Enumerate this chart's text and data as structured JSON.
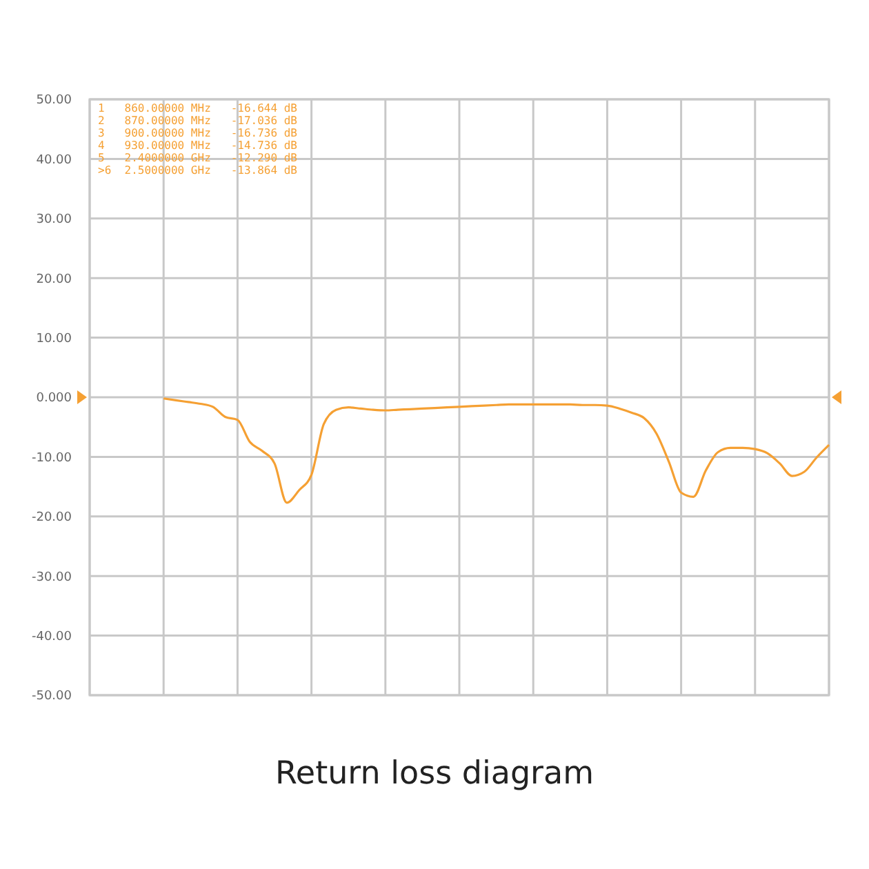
{
  "chart_data": {
    "type": "line",
    "title": "Return loss diagram",
    "categories": [
      null,
      null,
      null,
      null,
      null,
      null,
      null,
      null,
      null,
      null,
      null,
      null,
      null,
      null,
      null,
      null,
      null,
      null,
      null,
      null,
      null,
      null,
      null,
      null,
      null,
      null,
      null,
      null,
      null,
      null,
      null,
      null,
      null,
      null,
      null,
      null,
      null,
      null,
      null,
      null,
      null,
      null,
      null,
      null,
      null,
      null,
      null,
      null,
      null,
      null,
      null,
      null,
      null,
      null,
      null,
      null,
      null,
      null,
      null,
      null,
      null
    ],
    "series": [
      {
        "color": "#f5a033",
        "values": [
          null,
          null,
          null,
          null,
          null,
          null,
          -0.2,
          -0.5,
          -0.8,
          -1.1,
          -1.6,
          -3.3,
          -3.8,
          -7.5,
          -9.0,
          -11.1,
          -17.7,
          -15.6,
          -13,
          -4.5,
          -2.1,
          -1.7,
          -1.9,
          -2.1,
          -2.2,
          -2.1,
          -2.0,
          -1.9,
          -1.8,
          -1.7,
          -1.6,
          -1.5,
          -1.4,
          -1.3,
          -1.2,
          -1.2,
          -1.2,
          -1.2,
          -1.2,
          -1.2,
          -1.3,
          -1.3,
          -1.4,
          -1.9,
          -2.6,
          -3.5,
          -6.1,
          -10.8,
          -16.0,
          -16.7,
          -12.3,
          -9.2,
          -8.5,
          -8.5,
          -8.7,
          -9.4,
          -11.1,
          -13.2,
          -12.5,
          -10.1,
          -8.0
        ]
      }
    ],
    "ylim": [
      -50,
      50
    ],
    "yticks": [
      {
        "value": -50,
        "label": "-50.00"
      },
      {
        "value": -40,
        "label": "-40.00"
      },
      {
        "value": -30,
        "label": "-30.00"
      },
      {
        "value": -20,
        "label": "-20.00"
      },
      {
        "value": -10,
        "label": "-10.00"
      },
      {
        "value": 0,
        "label": "0.000"
      },
      {
        "value": 10,
        "label": "10.00"
      },
      {
        "value": 20,
        "label": "20.00"
      },
      {
        "value": 30,
        "label": "30.00"
      },
      {
        "value": 40,
        "label": "40.00"
      },
      {
        "value": 50,
        "label": "50.00"
      }
    ],
    "grid": true,
    "tick_labels": "y",
    "marker": "none",
    "line_style": "solid",
    "annotations": [
      "1   860.00000 MHz   -16.644 dB",
      "2   870.00000 MHz   -17.036 dB",
      "3   900.00000 MHz   -16.736 dB",
      "4   930.00000 MHz   -14.736 dB",
      "5   2.4000000 GHz   -12.290 dB",
      ">6  2.5000000 GHz   -13.864 dB"
    ]
  }
}
